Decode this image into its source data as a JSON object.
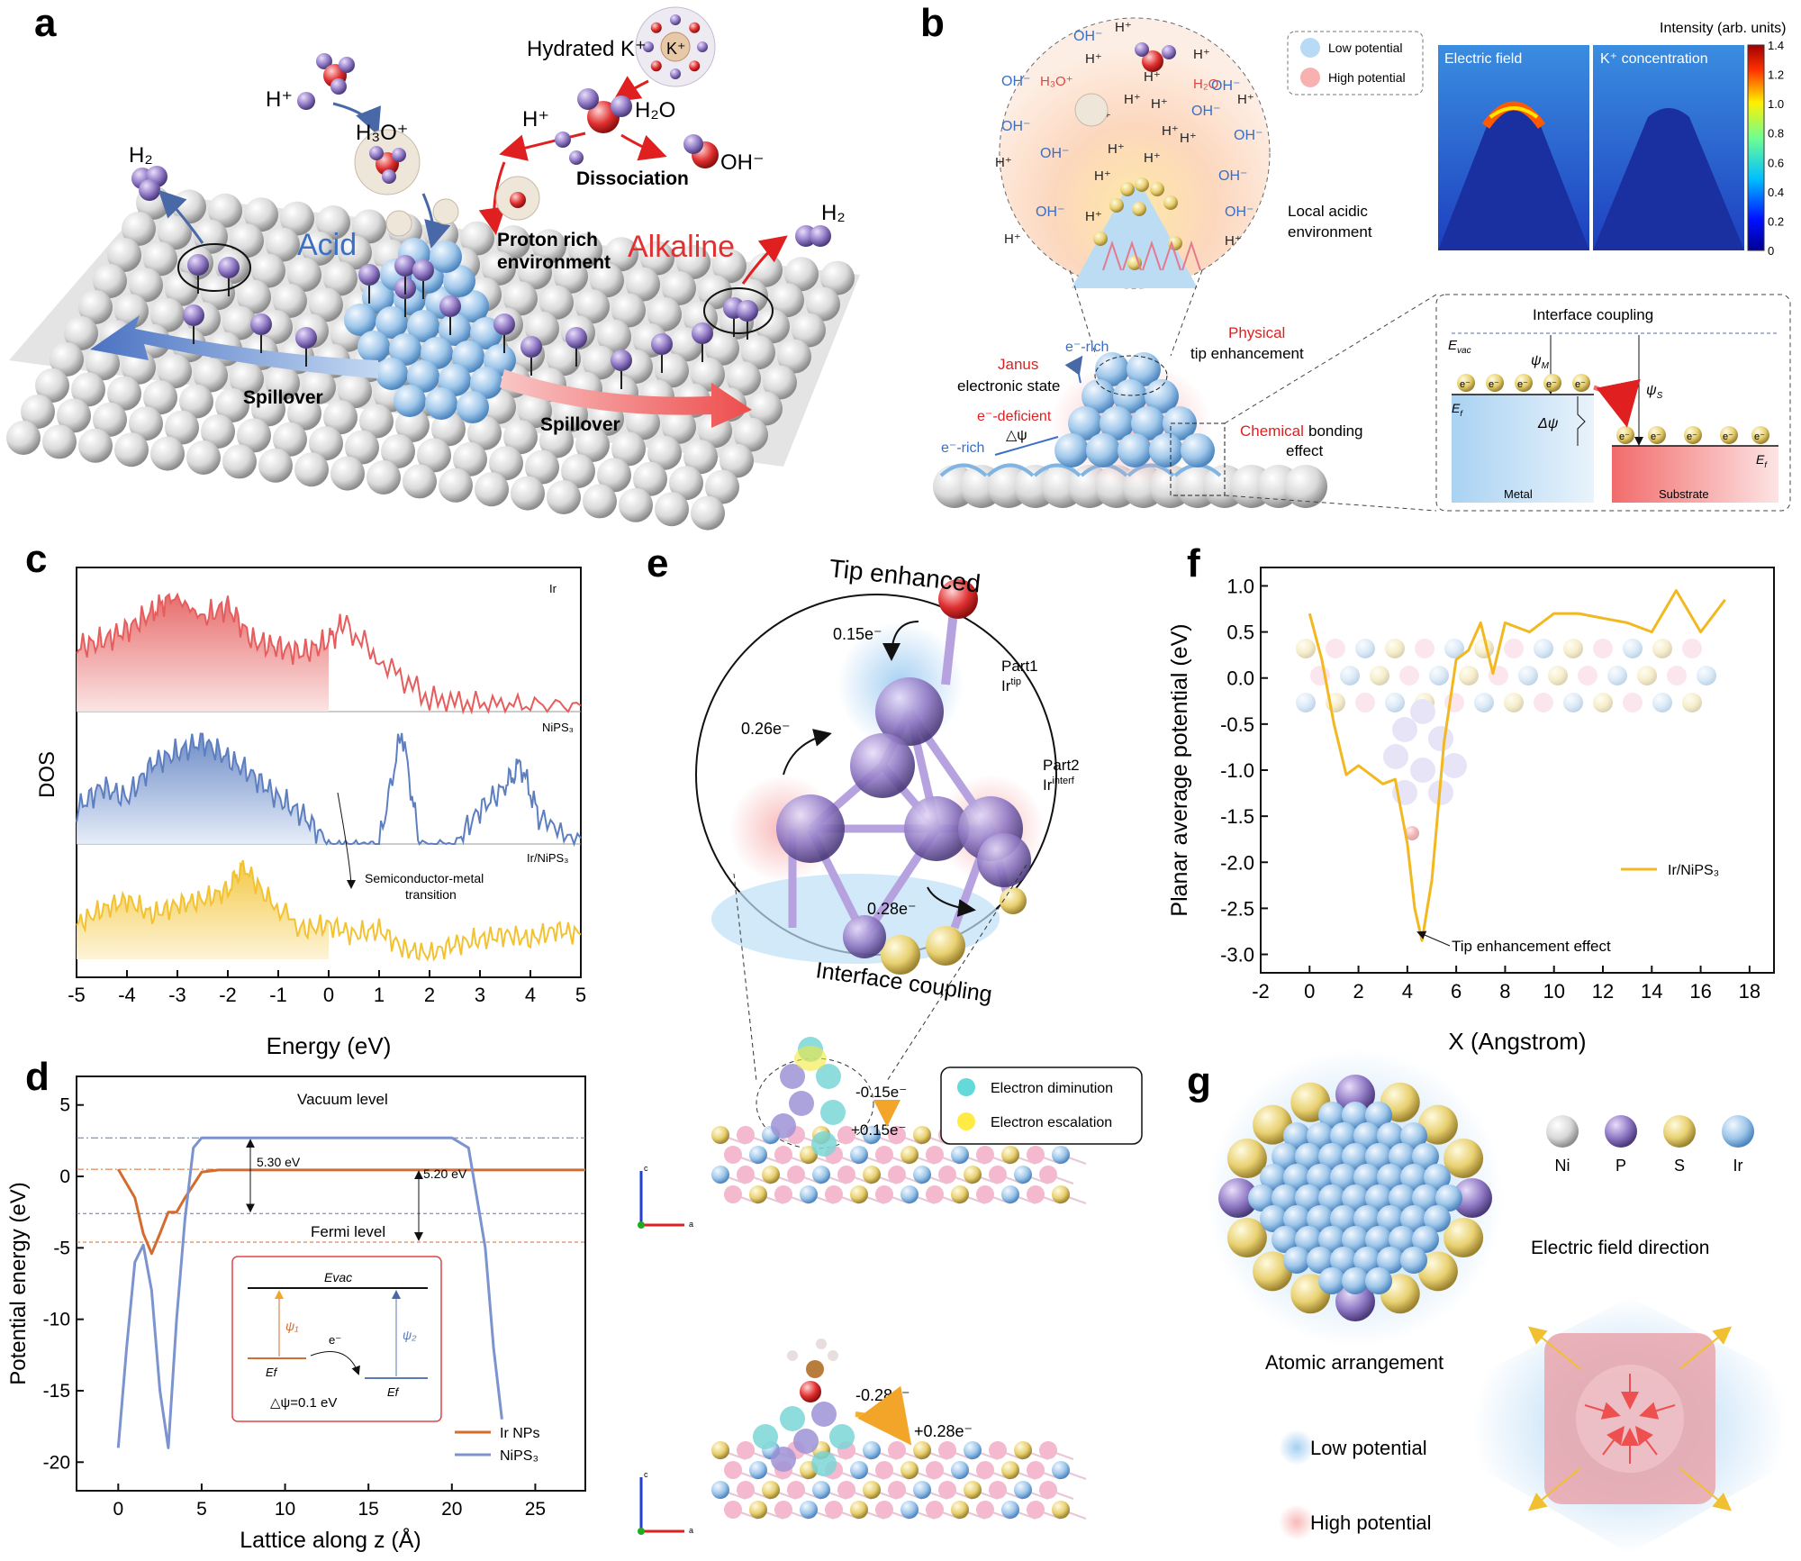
{
  "panels": {
    "a": {
      "letter": "a",
      "labels": {
        "hplus": "H⁺",
        "h3o": "H₃O⁺",
        "hydrated_k": "Hydrated K⁺",
        "k_inner": "K⁺",
        "h2o": "H₂O",
        "hplus2": "H⁺",
        "dissociation": "Dissociation",
        "ohminus": "OH⁻",
        "h2_left": "H₂",
        "h2_right": "H₂",
        "acid": "Acid",
        "alkaline": "Alkaline",
        "proton_rich_1": "Proton rich",
        "proton_rich_2": "environment",
        "spillover_left": "Spillover",
        "spillover_right": "Spillover"
      }
    },
    "b": {
      "letter": "b",
      "legend": {
        "low": "Low potential",
        "high": "High potential"
      },
      "colorbar": {
        "title": "Intensity (arb. units)",
        "ticks": [
          "1.4",
          "1.2",
          "1.0",
          "0.8",
          "0.6",
          "0.4",
          "0.2",
          "0"
        ]
      },
      "map_labels": {
        "efield": "Electric field",
        "kconc": "K⁺ concentration"
      },
      "circle_labels": {
        "oh": "OH⁻",
        "hplus": "H⁺",
        "h3o": "H₃O⁺",
        "h2o": "H₂O",
        "e": "e⁻"
      },
      "local_acidic_1": "Local acidic",
      "local_acidic_2": "environment",
      "physical": "Physical",
      "tip_enh": "tip enhancement",
      "janus": "Janus",
      "electronic_state": "electronic state",
      "e_rich_top": "e⁻-rich",
      "e_deficient": "e⁻-deficient",
      "delta_psi": "△ψ",
      "e_rich_bottom": "e⁻-rich",
      "chemical": "Chemical",
      "bonding": "bonding",
      "effect": "effect",
      "interface": {
        "title": "Interface coupling",
        "evac": "E",
        "evac_sub": "vac",
        "psi_m": "ψ",
        "psi_m_sub": "M",
        "psi_s": "ψ",
        "psi_s_sub": "S",
        "ef": "E",
        "ef_sub": "f",
        "delta_psi": "Δψ",
        "metal": "Metal",
        "substrate": "Substrate",
        "e": "e⁻"
      }
    },
    "c": {
      "letter": "c",
      "ylabel": "DOS",
      "xlabel": "Energy (eV)",
      "trace_labels": {
        "ir": "Ir",
        "nips": "NiPS₃",
        "irnips": "Ir/NiPS₃"
      },
      "annotation_1": "Semiconductor-metal",
      "annotation_2": "transition",
      "xticks": [
        "-5",
        "-4",
        "-3",
        "-2",
        "-1",
        "0",
        "1",
        "2",
        "3",
        "4",
        "5"
      ]
    },
    "d": {
      "letter": "d",
      "ylabel": "Potential energy (eV)",
      "xlabel": "Lattice along z (Å)",
      "vacuum_level": "Vacuum level",
      "fermi_level": "Fermi level",
      "v530": "5.30 eV",
      "v520": "5.20 eV",
      "legend": {
        "ir": "Ir NPs",
        "nips": "NiPS₃"
      },
      "inset": {
        "evac": "Evac",
        "psi1": "ψ₁",
        "psi2": "ψ₂",
        "e": "e⁻",
        "ef1": "Ef",
        "ef2": "Ef",
        "dpsi": "△ψ=0.1 eV"
      },
      "xticks": [
        "0",
        "5",
        "10",
        "15",
        "20",
        "25"
      ],
      "yticks": [
        "5",
        "0",
        "-5",
        "-10",
        "-15",
        "-20"
      ]
    },
    "e": {
      "letter": "e",
      "tip": "Tip enhanced",
      "q015": "0.15e⁻",
      "q026": "0.26e⁻",
      "q028": "0.28e⁻",
      "part1": "Part1",
      "ir_tip": "Ir",
      "ir_tip_sup": "tip",
      "part2": "Part2",
      "ir_interf": "Ir",
      "ir_interf_sup": "interf",
      "interface": "Interface coupling",
      "m015": "-0.15e⁻",
      "p015": "+0.15e⁻",
      "m028": "-0.28e⁻",
      "p028": "+0.28e⁻",
      "legend_dim": "Electron diminution",
      "legend_esc": "Electron escalation",
      "axis_c": "c",
      "axis_a": "a"
    },
    "f": {
      "letter": "f",
      "ylabel": "Planar average potential (eV)",
      "xlabel": "X (Angstrom)",
      "legend": "Ir/NiPS₃",
      "annotation": "Tip enhancement effect",
      "xticks": [
        "-2",
        "0",
        "2",
        "4",
        "6",
        "8",
        "10",
        "12",
        "14",
        "16",
        "18"
      ],
      "yticks": [
        "1.0",
        "0.5",
        "0.0",
        "-0.5",
        "-1.0",
        "-1.5",
        "-2.0",
        "-2.5",
        "-3.0"
      ]
    },
    "g": {
      "letter": "g",
      "atoms": [
        "Ni",
        "P",
        "S",
        "Ir"
      ],
      "atomic_arrangement": "Atomic arrangement",
      "efield_dir": "Electric field direction",
      "low": "Low potential",
      "high": "High potential"
    }
  },
  "chart_data": [
    {
      "type": "line",
      "panel": "c",
      "xlabel": "Energy (eV)",
      "ylabel": "DOS",
      "xlim": [
        -5,
        5
      ],
      "series": [
        {
          "name": "Ir",
          "x": [
            -5,
            -4.5,
            -4,
            -3.5,
            -3.1,
            -2.5,
            -2,
            -1.5,
            -1,
            -0.5,
            0,
            0.3,
            1,
            2,
            3,
            4,
            5
          ],
          "y": [
            0.55,
            0.6,
            0.7,
            0.85,
            1.0,
            0.8,
            0.9,
            0.6,
            0.55,
            0.5,
            0.6,
            0.75,
            0.45,
            0.1,
            0.05,
            0.06,
            0.05
          ]
        },
        {
          "name": "NiPS₃",
          "x": [
            -5,
            -4.5,
            -4,
            -3.5,
            -3,
            -2.5,
            -2,
            -1.5,
            -1,
            -0.5,
            0,
            0.5,
            1,
            1.45,
            1.8,
            2.5,
            3,
            3.5,
            3.8,
            4.2,
            5
          ],
          "y": [
            0.3,
            0.5,
            0.4,
            0.7,
            0.8,
            0.9,
            0.75,
            0.6,
            0.4,
            0.25,
            0,
            0,
            0,
            1.0,
            0,
            0,
            0.3,
            0.5,
            0.7,
            0.2,
            0.05
          ]
        },
        {
          "name": "Ir/NiPS₃",
          "x": [
            -5,
            -4.5,
            -4,
            -3.5,
            -3,
            -2.5,
            -2,
            -1.7,
            -1.2,
            -0.5,
            0,
            0.5,
            1,
            1.5,
            2,
            2.5,
            3,
            3.5,
            4,
            4.5,
            5
          ],
          "y": [
            0.35,
            0.5,
            0.6,
            0.45,
            0.55,
            0.6,
            0.7,
            0.95,
            0.6,
            0.3,
            0.35,
            0.25,
            0.3,
            0.1,
            0.05,
            0.15,
            0.2,
            0.25,
            0.2,
            0.3,
            0.25
          ]
        }
      ]
    },
    {
      "type": "line",
      "panel": "d",
      "xlabel": "Lattice along z (Å)",
      "ylabel": "Potential energy (eV)",
      "xlim": [
        -2.5,
        28
      ],
      "ylim": [
        -22,
        7
      ],
      "series": [
        {
          "name": "Ir NPs",
          "x": [
            0,
            1,
            1.5,
            2,
            2.5,
            3,
            3.5,
            4,
            5,
            6,
            10,
            20,
            28
          ],
          "y": [
            0.5,
            -1.5,
            -4,
            -5.4,
            -4,
            -2.5,
            -2.5,
            -1.5,
            0.3,
            0.45,
            0.45,
            0.45,
            0.45
          ]
        },
        {
          "name": "NiPS₃",
          "x": [
            0,
            0.5,
            1,
            1.5,
            2,
            2.5,
            3,
            3.5,
            4,
            4.5,
            5,
            10,
            20,
            21,
            22,
            22.5,
            23
          ],
          "y": [
            -19,
            -12,
            -6,
            -4.8,
            -8,
            -15,
            -19,
            -10,
            -3,
            2,
            2.7,
            2.7,
            2.7,
            2,
            -5,
            -12,
            -17
          ]
        }
      ],
      "reference_levels": {
        "vacuum": 2.7,
        "ir_fermi": 0.5,
        "nips_ef": -2.6,
        "fermi": -4.6
      }
    },
    {
      "type": "line",
      "panel": "f",
      "xlabel": "X (Angstrom)",
      "ylabel": "Planar average potential (eV)",
      "xlim": [
        -2,
        19
      ],
      "ylim": [
        -3.2,
        1.2
      ],
      "series": [
        {
          "name": "Ir/NiPS₃",
          "x": [
            0,
            0.5,
            1,
            1.5,
            2,
            2.5,
            3,
            3.5,
            4,
            4.3,
            4.6,
            5,
            5.5,
            6,
            6.5,
            7,
            7.5,
            8,
            9,
            10,
            11,
            12,
            13,
            14,
            15,
            16,
            17
          ],
          "y": [
            0.7,
            0.2,
            -0.5,
            -1.05,
            -0.95,
            -1.05,
            -1.15,
            -1.1,
            -1.8,
            -2.5,
            -2.85,
            -2.2,
            -0.7,
            0.2,
            0.3,
            0.6,
            0.05,
            0.6,
            0.5,
            0.7,
            0.7,
            0.65,
            0.6,
            0.5,
            0.95,
            0.5,
            0.85
          ]
        }
      ]
    }
  ]
}
